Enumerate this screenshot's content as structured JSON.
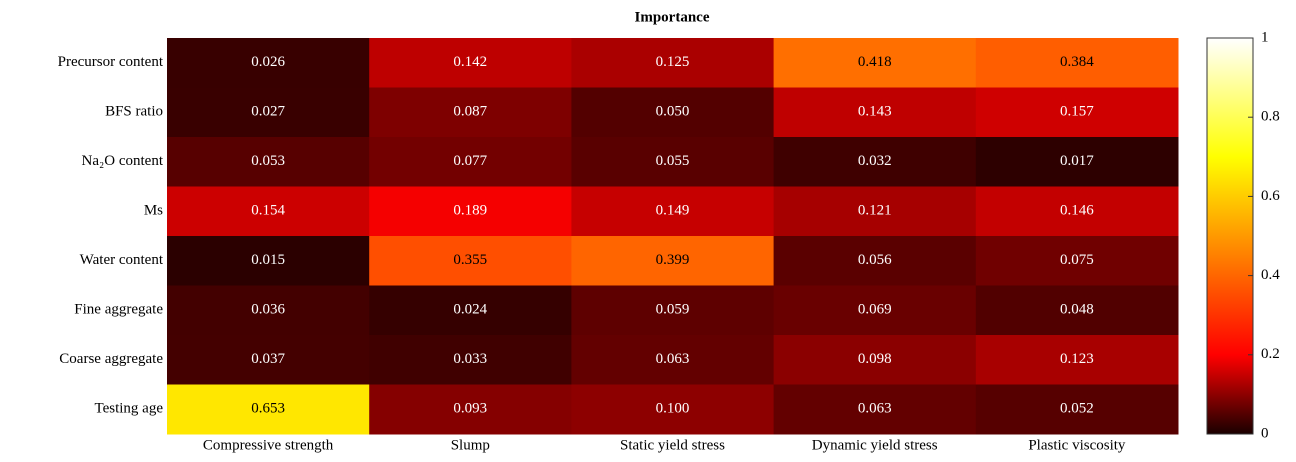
{
  "chart_data": {
    "type": "heatmap",
    "title": "Importance",
    "x_categories": [
      "Compressive strength",
      "Slump",
      "Static yield stress",
      "Dynamic yield stress",
      "Plastic viscosity"
    ],
    "y_categories": [
      "Precursor content",
      "BFS ratio",
      "Na₂O content",
      "Ms",
      "Water content",
      "Fine aggregate",
      "Coarse aggregate",
      "Testing age"
    ],
    "values": [
      [
        0.026,
        0.142,
        0.125,
        0.418,
        0.384
      ],
      [
        0.027,
        0.087,
        0.05,
        0.143,
        0.157
      ],
      [
        0.053,
        0.077,
        0.055,
        0.032,
        0.017
      ],
      [
        0.154,
        0.189,
        0.149,
        0.121,
        0.146
      ],
      [
        0.015,
        0.355,
        0.399,
        0.056,
        0.075
      ],
      [
        0.036,
        0.024,
        0.059,
        0.069,
        0.048
      ],
      [
        0.037,
        0.033,
        0.063,
        0.098,
        0.123
      ],
      [
        0.653,
        0.093,
        0.1,
        0.063,
        0.052
      ]
    ],
    "value_labels": [
      [
        "0.026",
        "0.142",
        "0.125",
        "0.418",
        "0.384"
      ],
      [
        "0.027",
        "0.087",
        "0.050",
        "0.143",
        "0.157"
      ],
      [
        "0.053",
        "0.077",
        "0.055",
        "0.032",
        "0.017"
      ],
      [
        "0.154",
        "0.189",
        "0.149",
        "0.121",
        "0.146"
      ],
      [
        "0.015",
        "0.355",
        "0.399",
        "0.056",
        "0.075"
      ],
      [
        "0.036",
        "0.024",
        "0.059",
        "0.069",
        "0.048"
      ],
      [
        "0.037",
        "0.033",
        "0.063",
        "0.098",
        "0.123"
      ],
      [
        "0.653",
        "0.093",
        "0.100",
        "0.063",
        "0.052"
      ]
    ],
    "colormap": "hot",
    "clim": [
      0,
      1
    ],
    "cticks": [
      0,
      0.2,
      0.4,
      0.6,
      0.8,
      1
    ]
  }
}
